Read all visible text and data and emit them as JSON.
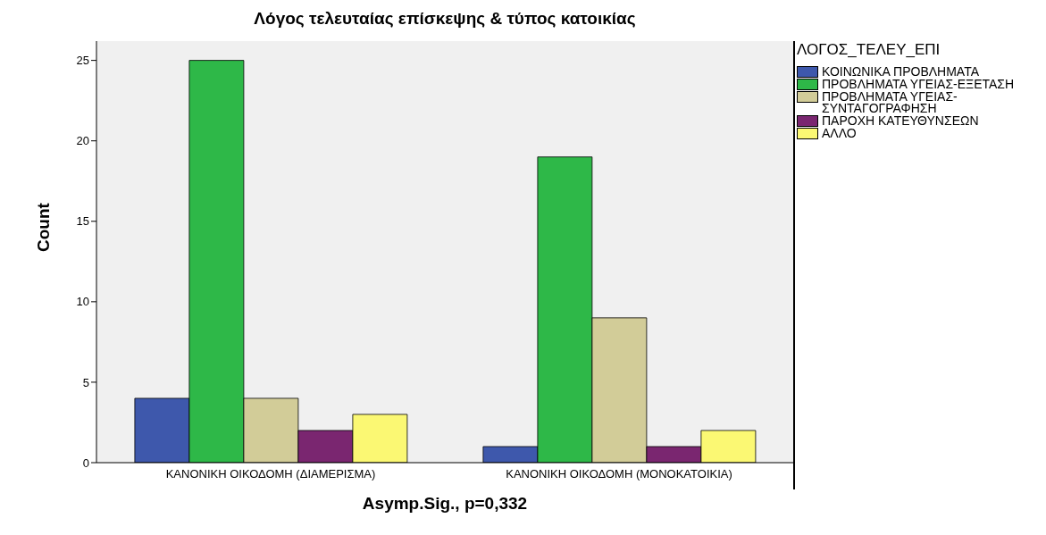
{
  "chart_data": {
    "type": "bar",
    "title": "Λόγος τελευταίας επίσκεψης & τύπος κατοικίας",
    "xlabel": "Asymp.Sig., p=0,332",
    "ylabel": "Count",
    "legend_title": "ΛΟΓΟΣ_ΤΕΛΕΥ_ΕΠΙ",
    "categories": [
      "ΚΑΝΟΝΙΚΗ ΟΙΚΟΔΟΜΗ (ΔΙΑΜΕΡΙΣΜΑ)",
      "ΚΑΝΟΝΙΚΗ ΟΙΚΟΔΟΜΗ (ΜΟΝΟΚΑΤΟΙΚΙΑ)"
    ],
    "series": [
      {
        "name": "ΚΟΙΝΩΝΙΚΑ ΠΡΟΒΛΗΜΑΤΑ",
        "color": "#3e58ac",
        "values": [
          4,
          1
        ]
      },
      {
        "name": "ΠΡΟΒΛΗΜΑΤΑ ΥΓΕΙΑΣ-ΕΞΕΤΑΣΗ",
        "color": "#2eb848",
        "values": [
          25,
          19
        ]
      },
      {
        "name": "ΠΡΟΒΛΗΜΑΤΑ ΥΓΕΙΑΣ-ΣΥΝΤΑΓΟΓΡΑΦΗΣΗ",
        "color": "#d2cc98",
        "values": [
          4,
          9
        ]
      },
      {
        "name": "ΠΑΡΟΧΗ ΚΑΤΕΥΘΥΝΣΕΩΝ",
        "color": "#7a2670",
        "values": [
          2,
          1
        ]
      },
      {
        "name": "ΑΛΛΟ",
        "color": "#fbf873",
        "values": [
          3,
          2
        ]
      }
    ],
    "ylim": [
      0,
      26.2
    ],
    "yticks": [
      0,
      5,
      10,
      15,
      20,
      25
    ],
    "grid": false,
    "legend": "top right"
  }
}
